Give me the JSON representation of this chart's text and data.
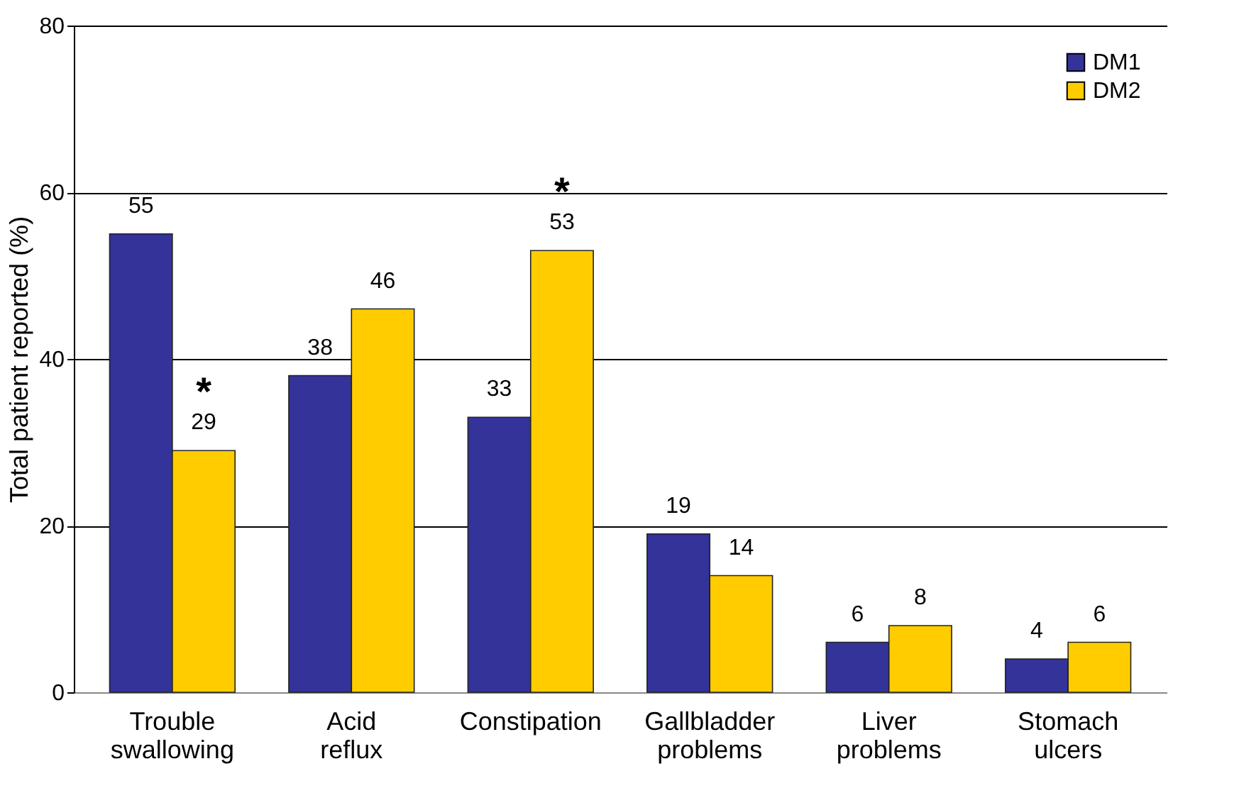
{
  "chart_data": {
    "type": "bar",
    "ylabel": "Total patient reported (%)",
    "categories": [
      "Trouble swallowing",
      "Acid reflux",
      "Constipation",
      "Gallbladder problems",
      "Liver problems",
      "Stomach ulcers"
    ],
    "series": [
      {
        "name": "DM1",
        "color": "#333399",
        "values": [
          55,
          38,
          33,
          19,
          6,
          4
        ]
      },
      {
        "name": "DM2",
        "color": "#ffcc00",
        "values": [
          29,
          46,
          53,
          14,
          8,
          6
        ]
      }
    ],
    "ylim": [
      0,
      80
    ],
    "yticks": [
      0,
      20,
      40,
      60,
      80
    ],
    "grid": "y",
    "legend": "top right",
    "data_labels": true,
    "annotations": [
      {
        "text": "*",
        "x": "Trouble swallowing",
        "y": 29
      },
      {
        "text": "*",
        "x": "Constipation",
        "y": 53
      }
    ]
  }
}
